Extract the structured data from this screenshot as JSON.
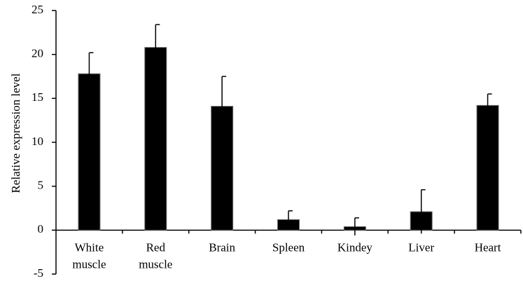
{
  "chart_data": {
    "type": "bar",
    "title": "",
    "xlabel": "",
    "ylabel": "Relative expression level",
    "ylim": [
      -5,
      25
    ],
    "yticks": [
      -5,
      0,
      5,
      10,
      15,
      20,
      25
    ],
    "grid": false,
    "legend": "none",
    "categories": [
      [
        "White",
        "muscle"
      ],
      [
        "Red",
        "muscle"
      ],
      [
        "Brain"
      ],
      [
        "Spleen"
      ],
      [
        "Kindey"
      ],
      [
        "Liver"
      ],
      [
        "Heart"
      ]
    ],
    "values": [
      17.8,
      20.8,
      14.1,
      1.2,
      0.4,
      2.1,
      14.2
    ],
    "errors": [
      2.4,
      2.6,
      3.4,
      1.0,
      1.0,
      2.5,
      1.3
    ],
    "bar_color": "#000000",
    "axis_color": "#000000"
  }
}
